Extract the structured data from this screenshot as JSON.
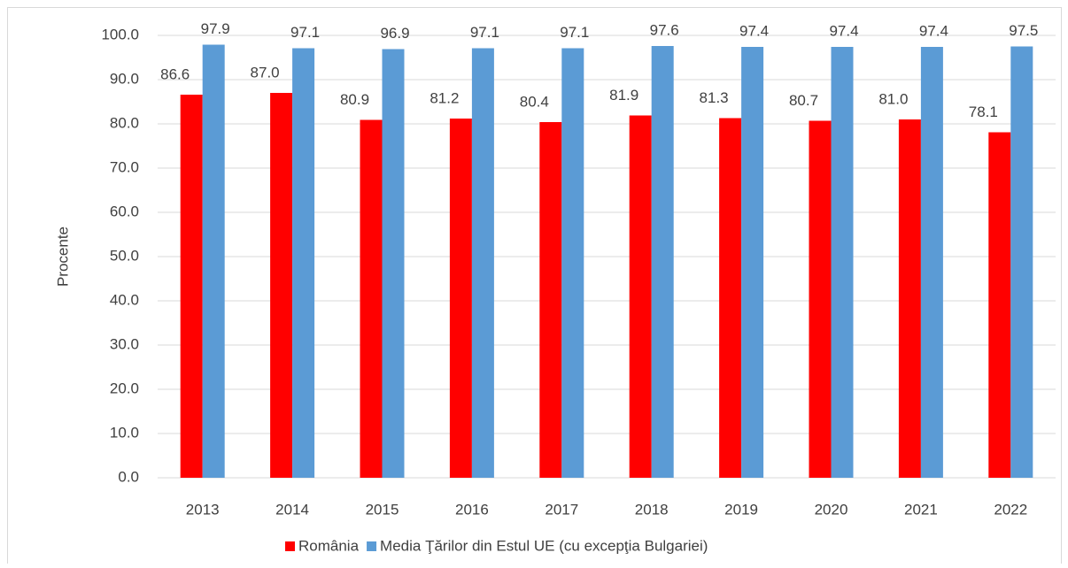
{
  "chart_data": {
    "type": "bar",
    "y_label": "Procente",
    "categories": [
      "2013",
      "2014",
      "2015",
      "2016",
      "2017",
      "2018",
      "2019",
      "2020",
      "2021",
      "2022"
    ],
    "series": [
      {
        "name": "România",
        "color": "#ff0000",
        "values": [
          86.6,
          87,
          80.9,
          81.2,
          80.4,
          81.9,
          81.3,
          80.7,
          81,
          78.1
        ],
        "value_labels": [
          "86.6",
          "87.0",
          "80.9",
          "81.2",
          "80.4",
          "81.9",
          "81.3",
          "80.7",
          "81.0",
          "78.1"
        ]
      },
      {
        "name": "Media Ţărilor din Estul UE (cu excepţia Bulgariei)",
        "color": "#5b9bd5",
        "values": [
          97.9,
          97.1,
          96.9,
          97.1,
          97.1,
          97.6,
          97.4,
          97.4,
          97.4,
          97.5
        ],
        "value_labels": [
          "97.9",
          "97.1",
          "96.9",
          "97.1",
          "97.1",
          "97.6",
          "97.4",
          "97.4",
          "97.4",
          "97.5"
        ]
      }
    ],
    "ylim": [
      0,
      100
    ],
    "yticks": [
      {
        "value": 0,
        "label": "0.0"
      },
      {
        "value": 10,
        "label": "10.0"
      },
      {
        "value": 20,
        "label": "20.0"
      },
      {
        "value": 30,
        "label": "30.0"
      },
      {
        "value": 40,
        "label": "40.0"
      },
      {
        "value": 50,
        "label": "50.0"
      },
      {
        "value": 60,
        "label": "60.0"
      },
      {
        "value": 70,
        "label": "70.0"
      },
      {
        "value": 80,
        "label": "80.0"
      },
      {
        "value": 90,
        "label": "90.0"
      },
      {
        "value": 100,
        "label": "100.0"
      }
    ],
    "grid": true,
    "legend": "bottom"
  }
}
